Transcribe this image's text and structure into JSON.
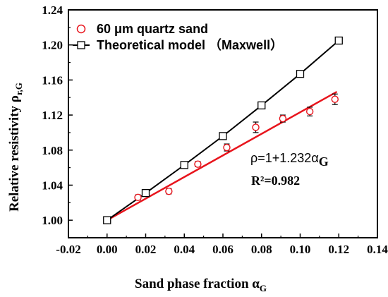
{
  "chart_data": {
    "type": "scatter",
    "xlabel": "Sand phase fraction α",
    "xlabel_sub": "G",
    "ylabel": "Relative resistivity ρ",
    "ylabel_sub": "r,G",
    "xlim": [
      -0.02,
      0.14
    ],
    "ylim": [
      0.98,
      1.24
    ],
    "x_ticks": [
      "-0.02",
      "0.00",
      "0.02",
      "0.04",
      "0.06",
      "0.08",
      "0.10",
      "0.12",
      "0.14"
    ],
    "y_ticks": [
      "1.00",
      "1.04",
      "1.08",
      "1.12",
      "1.16",
      "1.20",
      "1.24"
    ],
    "legend_position": "top-left",
    "series": [
      {
        "name": "60 μm quartz sand",
        "marker": "circle",
        "color": "#e8141c",
        "x": [
          0.0,
          0.016,
          0.032,
          0.047,
          0.062,
          0.077,
          0.091,
          0.105,
          0.118
        ],
        "y": [
          1.0,
          1.026,
          1.033,
          1.064,
          1.083,
          1.106,
          1.116,
          1.124,
          1.138
        ],
        "error": [
          0.002,
          0.003,
          0.003,
          0.003,
          0.004,
          0.006,
          0.004,
          0.005,
          0.006
        ]
      },
      {
        "name": "Theoretical model （Maxwell）",
        "marker": "square",
        "color": "#000000",
        "x": [
          0.0,
          0.02,
          0.04,
          0.06,
          0.08,
          0.1,
          0.12
        ],
        "y": [
          1.0,
          1.031,
          1.063,
          1.096,
          1.131,
          1.167,
          1.205
        ]
      }
    ],
    "fit_line": {
      "color": "#e8141c",
      "x": [
        0.0,
        0.119
      ],
      "y": [
        1.0,
        1.1466
      ]
    },
    "annotations": {
      "equation_prefix": "ρ=1+1.232α",
      "equation_sub": "G",
      "r2": "R²=0.982"
    }
  }
}
